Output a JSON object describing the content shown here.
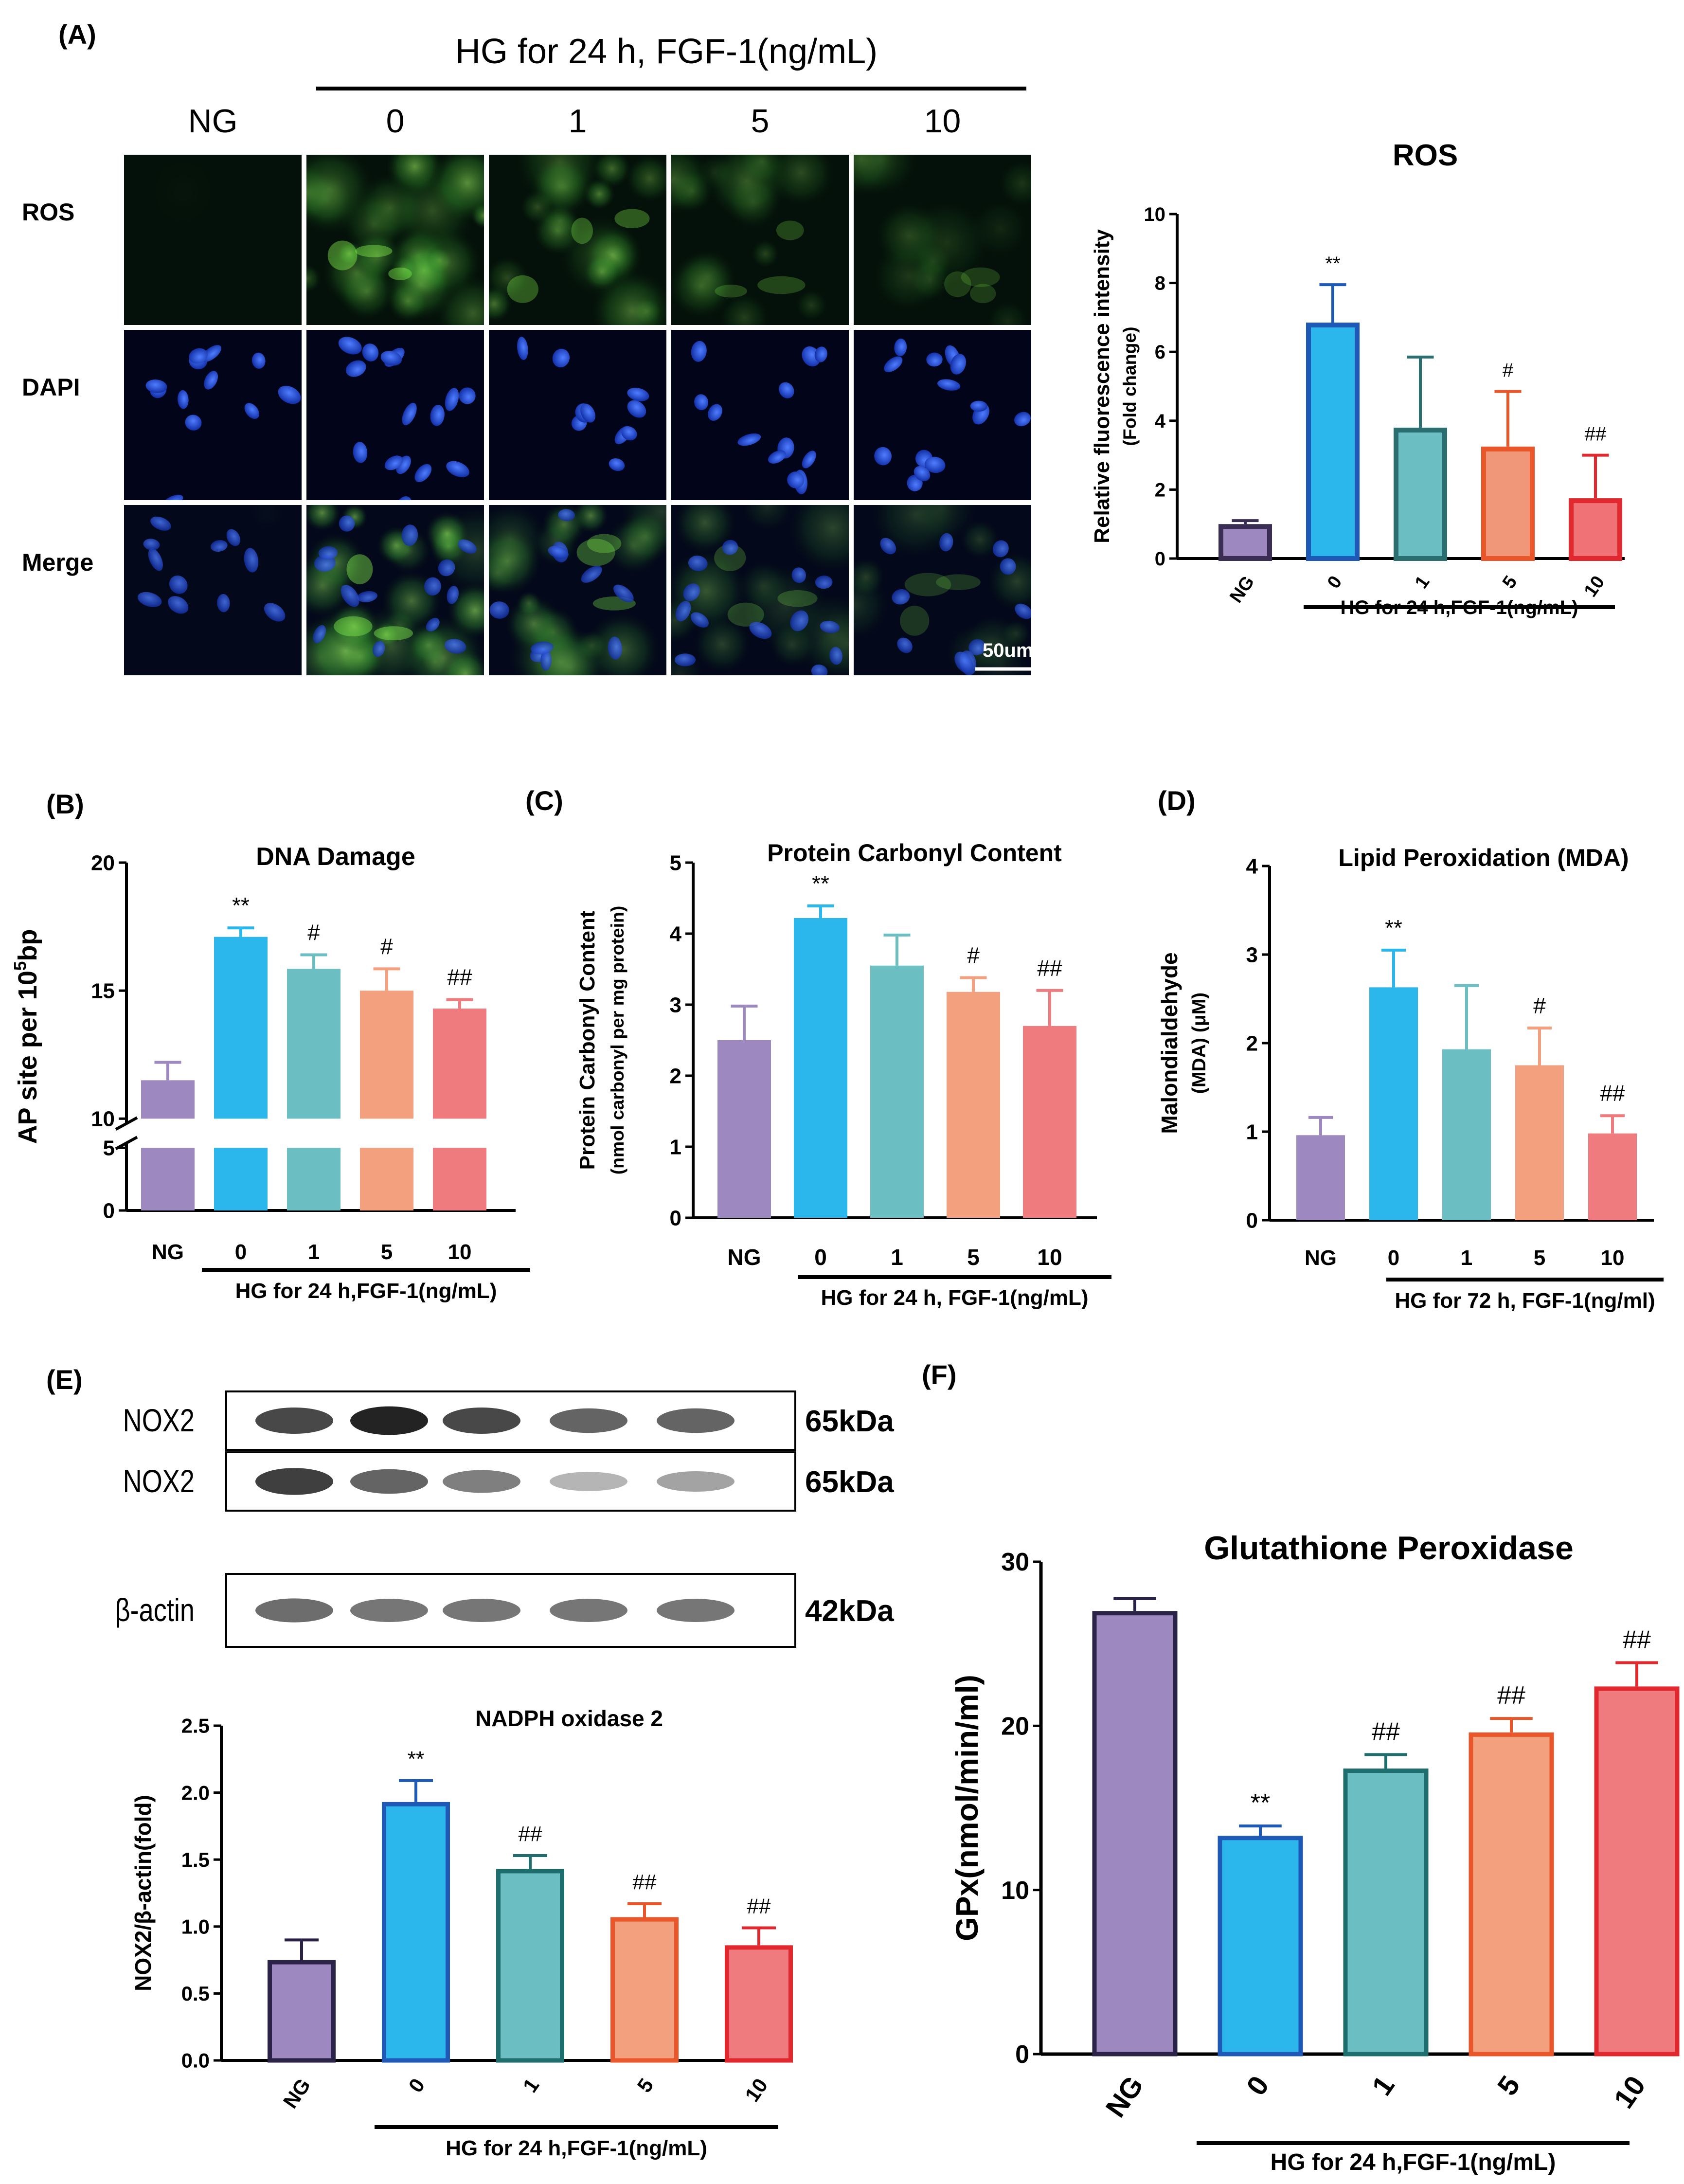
{
  "panels": {
    "a": {
      "label": "(A)",
      "header": "HG for 24 h, FGF-1(ng/mL)",
      "columns": [
        "NG",
        "0",
        "1",
        "5",
        "10"
      ],
      "rows": [
        "ROS",
        "DAPI",
        "Merge"
      ],
      "scalebar": "50um"
    },
    "b": {
      "label": "(B)"
    },
    "c": {
      "label": "(C)"
    },
    "d": {
      "label": "(D)"
    },
    "e": {
      "label": "(E)",
      "blot_rows": [
        {
          "name": "NOX2",
          "size": "65kDa"
        },
        {
          "name": "NOX2",
          "size": "65kDa"
        },
        {
          "name": "β-actin",
          "size": "42kDa"
        }
      ]
    },
    "f": {
      "label": "(F)"
    }
  },
  "chart_data": [
    {
      "id": "ros",
      "type": "bar",
      "title": "ROS",
      "ylabel": [
        "Relative fluorescence intensity",
        "(Fold change)"
      ],
      "ylim": [
        0,
        10
      ],
      "yticks": [
        "0",
        "2",
        "4",
        "6",
        "8",
        "10"
      ],
      "categories": [
        "NG",
        "0",
        "1",
        "5",
        "10"
      ],
      "values": [
        1.0,
        6.85,
        3.8,
        3.25,
        1.75
      ],
      "errors": [
        0.1,
        1.1,
        2.05,
        1.6,
        1.25
      ],
      "annotations": [
        "",
        "**",
        "",
        "#",
        "##"
      ],
      "group_label": "HG for 24 h,FGF-1(ng/mL)",
      "colors": [
        "#9d88c0",
        "#2cb7ec",
        "#6bbec2",
        "#f0977a",
        "#f07276"
      ],
      "edges": [
        "#3a2e55",
        "#1f59b8",
        "#2a6e70",
        "#e8562a",
        "#e0282e"
      ]
    },
    {
      "id": "dna",
      "type": "bar",
      "title": "DNA Damage",
      "ylabel": [
        "AP site per 10",
        "5",
        "bp"
      ],
      "ylim": [
        0,
        20
      ],
      "yticks": [
        "0",
        "5",
        "10",
        "15",
        "20"
      ],
      "axis_break": [
        5,
        10
      ],
      "categories": [
        "NG",
        "0",
        "1",
        "5",
        "10"
      ],
      "values": [
        11.5,
        17.1,
        15.85,
        15.0,
        14.3
      ],
      "errors": [
        0.7,
        0.35,
        0.55,
        0.85,
        0.35
      ],
      "annotations": [
        "",
        "**",
        "#",
        "#",
        "##"
      ],
      "group_label": "HG for 24 h,FGF-1(ng/mL)",
      "colors": [
        "#9d88c0",
        "#2cb7ec",
        "#6bbec2",
        "#f2a07e",
        "#ef7b7f"
      ]
    },
    {
      "id": "carbonyl",
      "type": "bar",
      "title": "Protein Carbonyl Content",
      "ylabel": [
        "Protein Carbonyl Content",
        "(nmol carbonyl per mg protein)"
      ],
      "ylim": [
        0,
        5
      ],
      "yticks": [
        "0",
        "1",
        "2",
        "3",
        "4",
        "5"
      ],
      "categories": [
        "NG",
        "0",
        "1",
        "5",
        "10"
      ],
      "values": [
        2.5,
        4.22,
        3.55,
        3.18,
        2.7
      ],
      "errors": [
        0.48,
        0.17,
        0.43,
        0.2,
        0.5
      ],
      "annotations": [
        "",
        "**",
        "",
        "#",
        "##"
      ],
      "group_label": "HG for 24 h, FGF-1(ng/mL)",
      "colors": [
        "#9d88c0",
        "#2cb7ec",
        "#6bbec2",
        "#f2a07e",
        "#ef7b7f"
      ]
    },
    {
      "id": "mda",
      "type": "bar",
      "title": "Lipid Peroxidation (MDA)",
      "ylabel": [
        "Malondialdehyde",
        "(MDA) (μM)"
      ],
      "ylim": [
        0,
        4
      ],
      "yticks": [
        "0",
        "1",
        "2",
        "3",
        "4"
      ],
      "categories": [
        "NG",
        "0",
        "1",
        "5",
        "10"
      ],
      "values": [
        0.96,
        2.63,
        1.93,
        1.75,
        0.98
      ],
      "errors": [
        0.2,
        0.42,
        0.72,
        0.42,
        0.2
      ],
      "annotations": [
        "",
        "**",
        "",
        "#",
        "##"
      ],
      "group_label": "HG for 72 h, FGF-1(ng/ml)",
      "colors": [
        "#9d88c0",
        "#2cb7ec",
        "#6bbec2",
        "#f2a07e",
        "#ef7b7f"
      ]
    },
    {
      "id": "nox2",
      "type": "bar",
      "title": "NADPH oxidase 2",
      "ylabel": [
        "NOX2/β-actin(fold)"
      ],
      "ylim": [
        0,
        2.5
      ],
      "yticks": [
        "0.0",
        "0.5",
        "1.0",
        "1.5",
        "2.0",
        "2.5"
      ],
      "categories": [
        "NG",
        "0",
        "1",
        "5",
        "10"
      ],
      "values": [
        0.75,
        1.93,
        1.43,
        1.07,
        0.86
      ],
      "errors": [
        0.15,
        0.16,
        0.1,
        0.1,
        0.13
      ],
      "annotations": [
        "",
        "**",
        "##",
        "##",
        "##"
      ],
      "group_label": "HG for 24 h,FGF-1(ng/mL)",
      "colors": [
        "#9d88c0",
        "#2cb7ec",
        "#6bbec2",
        "#f2a07e",
        "#ef7b7f"
      ],
      "edges": [
        "#2b2347",
        "#1f59b8",
        "#1f6e6e",
        "#e8562a",
        "#e0282e"
      ]
    },
    {
      "id": "gpx",
      "type": "bar",
      "title": "Glutathione Peroxidase",
      "ylabel": [
        "GPx(nmol/min/ml)"
      ],
      "ylim": [
        0,
        30
      ],
      "yticks": [
        "0",
        "10",
        "20",
        "30"
      ],
      "categories": [
        "NG",
        "0",
        "1",
        "5",
        "10"
      ],
      "values": [
        27.0,
        13.3,
        17.4,
        19.6,
        22.4
      ],
      "errors": [
        0.75,
        0.6,
        0.85,
        0.85,
        1.45
      ],
      "annotations": [
        "",
        "**",
        "##",
        "##",
        "##"
      ],
      "group_label": "HG for 24 h,FGF-1(ng/mL)",
      "colors": [
        "#9d88c0",
        "#2cb7ec",
        "#6bbec2",
        "#f2a07e",
        "#ef7b7f"
      ],
      "edges": [
        "#2b2347",
        "#1f59b8",
        "#1f6e6e",
        "#e8562a",
        "#e0282e"
      ]
    }
  ]
}
